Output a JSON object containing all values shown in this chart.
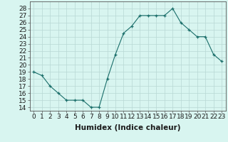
{
  "x": [
    0,
    1,
    2,
    3,
    4,
    5,
    6,
    7,
    8,
    9,
    10,
    11,
    12,
    13,
    14,
    15,
    16,
    17,
    18,
    19,
    20,
    21,
    22,
    23
  ],
  "y": [
    19,
    18.5,
    17,
    16,
    15,
    15,
    15,
    14,
    14,
    18,
    21.5,
    24.5,
    25.5,
    27,
    27,
    27,
    27,
    28,
    26,
    25,
    24,
    24,
    21.5,
    20.5
  ],
  "line_color": "#1a6e6a",
  "marker": "+",
  "marker_color": "#1a6e6a",
  "bg_color": "#d8f5f0",
  "grid_color": "#b8d8d4",
  "xlabel": "Humidex (Indice chaleur)",
  "xlim": [
    -0.5,
    23.5
  ],
  "ylim": [
    13.5,
    29
  ],
  "yticks": [
    14,
    15,
    16,
    17,
    18,
    19,
    20,
    21,
    22,
    23,
    24,
    25,
    26,
    27,
    28
  ],
  "xticks": [
    0,
    1,
    2,
    3,
    4,
    5,
    6,
    7,
    8,
    9,
    10,
    11,
    12,
    13,
    14,
    15,
    16,
    17,
    18,
    19,
    20,
    21,
    22,
    23
  ],
  "xtick_labels": [
    "0",
    "1",
    "2",
    "3",
    "4",
    "5",
    "6",
    "7",
    "8",
    "9",
    "10",
    "11",
    "12",
    "13",
    "14",
    "15",
    "16",
    "17",
    "18",
    "19",
    "20",
    "21",
    "22",
    "23"
  ],
  "tick_font_size": 6.5,
  "label_font_size": 7.5
}
